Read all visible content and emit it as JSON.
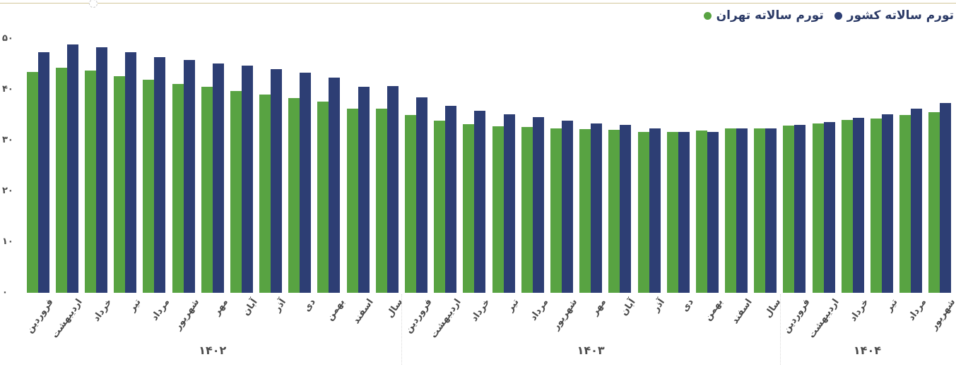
{
  "page": {
    "background": "#ffffff",
    "top_rule_color": "#d2c79c"
  },
  "legend": {
    "items": [
      {
        "key": "country",
        "label": "تورم سالاته کشور",
        "color": "#2d3e74",
        "marker": "circle-icon"
      },
      {
        "key": "tehran",
        "label": "تورم سالاته تهران",
        "color": "#58a342",
        "marker": "circle-icon"
      }
    ]
  },
  "chart_data": {
    "type": "bar",
    "title": "",
    "xlabel": "",
    "ylabel": "",
    "ylim": [
      0,
      50
    ],
    "grid": false,
    "legend_position": "top-right",
    "rtl": true,
    "categories": [
      "فروردین",
      "اردیبهشت",
      "خرداد",
      "تیر",
      "مرداد",
      "شهریور",
      "مهر",
      "آبان",
      "آذر",
      "دی",
      "بهمن",
      "اسفند",
      "سال",
      "فروردین",
      "اردیبهشت",
      "خرداد",
      "تیر",
      "مرداد",
      "شهریور",
      "مهر",
      "آبان",
      "آذر",
      "دی",
      "بهمن",
      "اسفند",
      "سال",
      "فروردین",
      "اردیبهشت",
      "خرداد",
      "تیر",
      "مرداد",
      "شهریور"
    ],
    "year_groups": [
      {
        "label": "۱۴۰۲",
        "count": 13
      },
      {
        "label": "۱۴۰۳",
        "count": 13
      },
      {
        "label": "۱۴۰۴",
        "count": 6
      }
    ],
    "series": [
      {
        "key": "tehran",
        "name": "تورم سالاته تهران",
        "color": "#58a342",
        "values": [
          43.5,
          44.3,
          43.7,
          42.7,
          41.9,
          41.1,
          40.5,
          39.7,
          39.0,
          38.3,
          37.6,
          36.3,
          36.2,
          35.0,
          33.9,
          33.2,
          32.8,
          32.6,
          32.4,
          32.2,
          32.1,
          31.7,
          31.6,
          32.0,
          32.4,
          32.4,
          32.9,
          33.4,
          34.0,
          34.3,
          35.0,
          35.6
        ]
      },
      {
        "key": "country",
        "name": "تورم سالاته کشور",
        "color": "#2d3e74",
        "values": [
          47.4,
          48.9,
          48.3,
          47.4,
          46.4,
          45.8,
          45.1,
          44.7,
          44.0,
          43.3,
          42.3,
          40.6,
          40.7,
          38.5,
          36.8,
          35.9,
          35.2,
          34.6,
          33.9,
          33.4,
          33.0,
          32.3,
          31.7,
          31.7,
          32.3,
          32.3,
          33.0,
          33.6,
          34.4,
          35.2,
          36.2,
          37.4
        ]
      }
    ],
    "y_ticks": [
      {
        "value": 50,
        "label": "۵۰"
      },
      {
        "value": 40,
        "label": "۴۰"
      },
      {
        "value": 30,
        "label": "۳۰"
      },
      {
        "value": 20,
        "label": "۲۰"
      },
      {
        "value": 10,
        "label": "۱۰"
      },
      {
        "value": 0,
        "label": "۰"
      }
    ]
  }
}
